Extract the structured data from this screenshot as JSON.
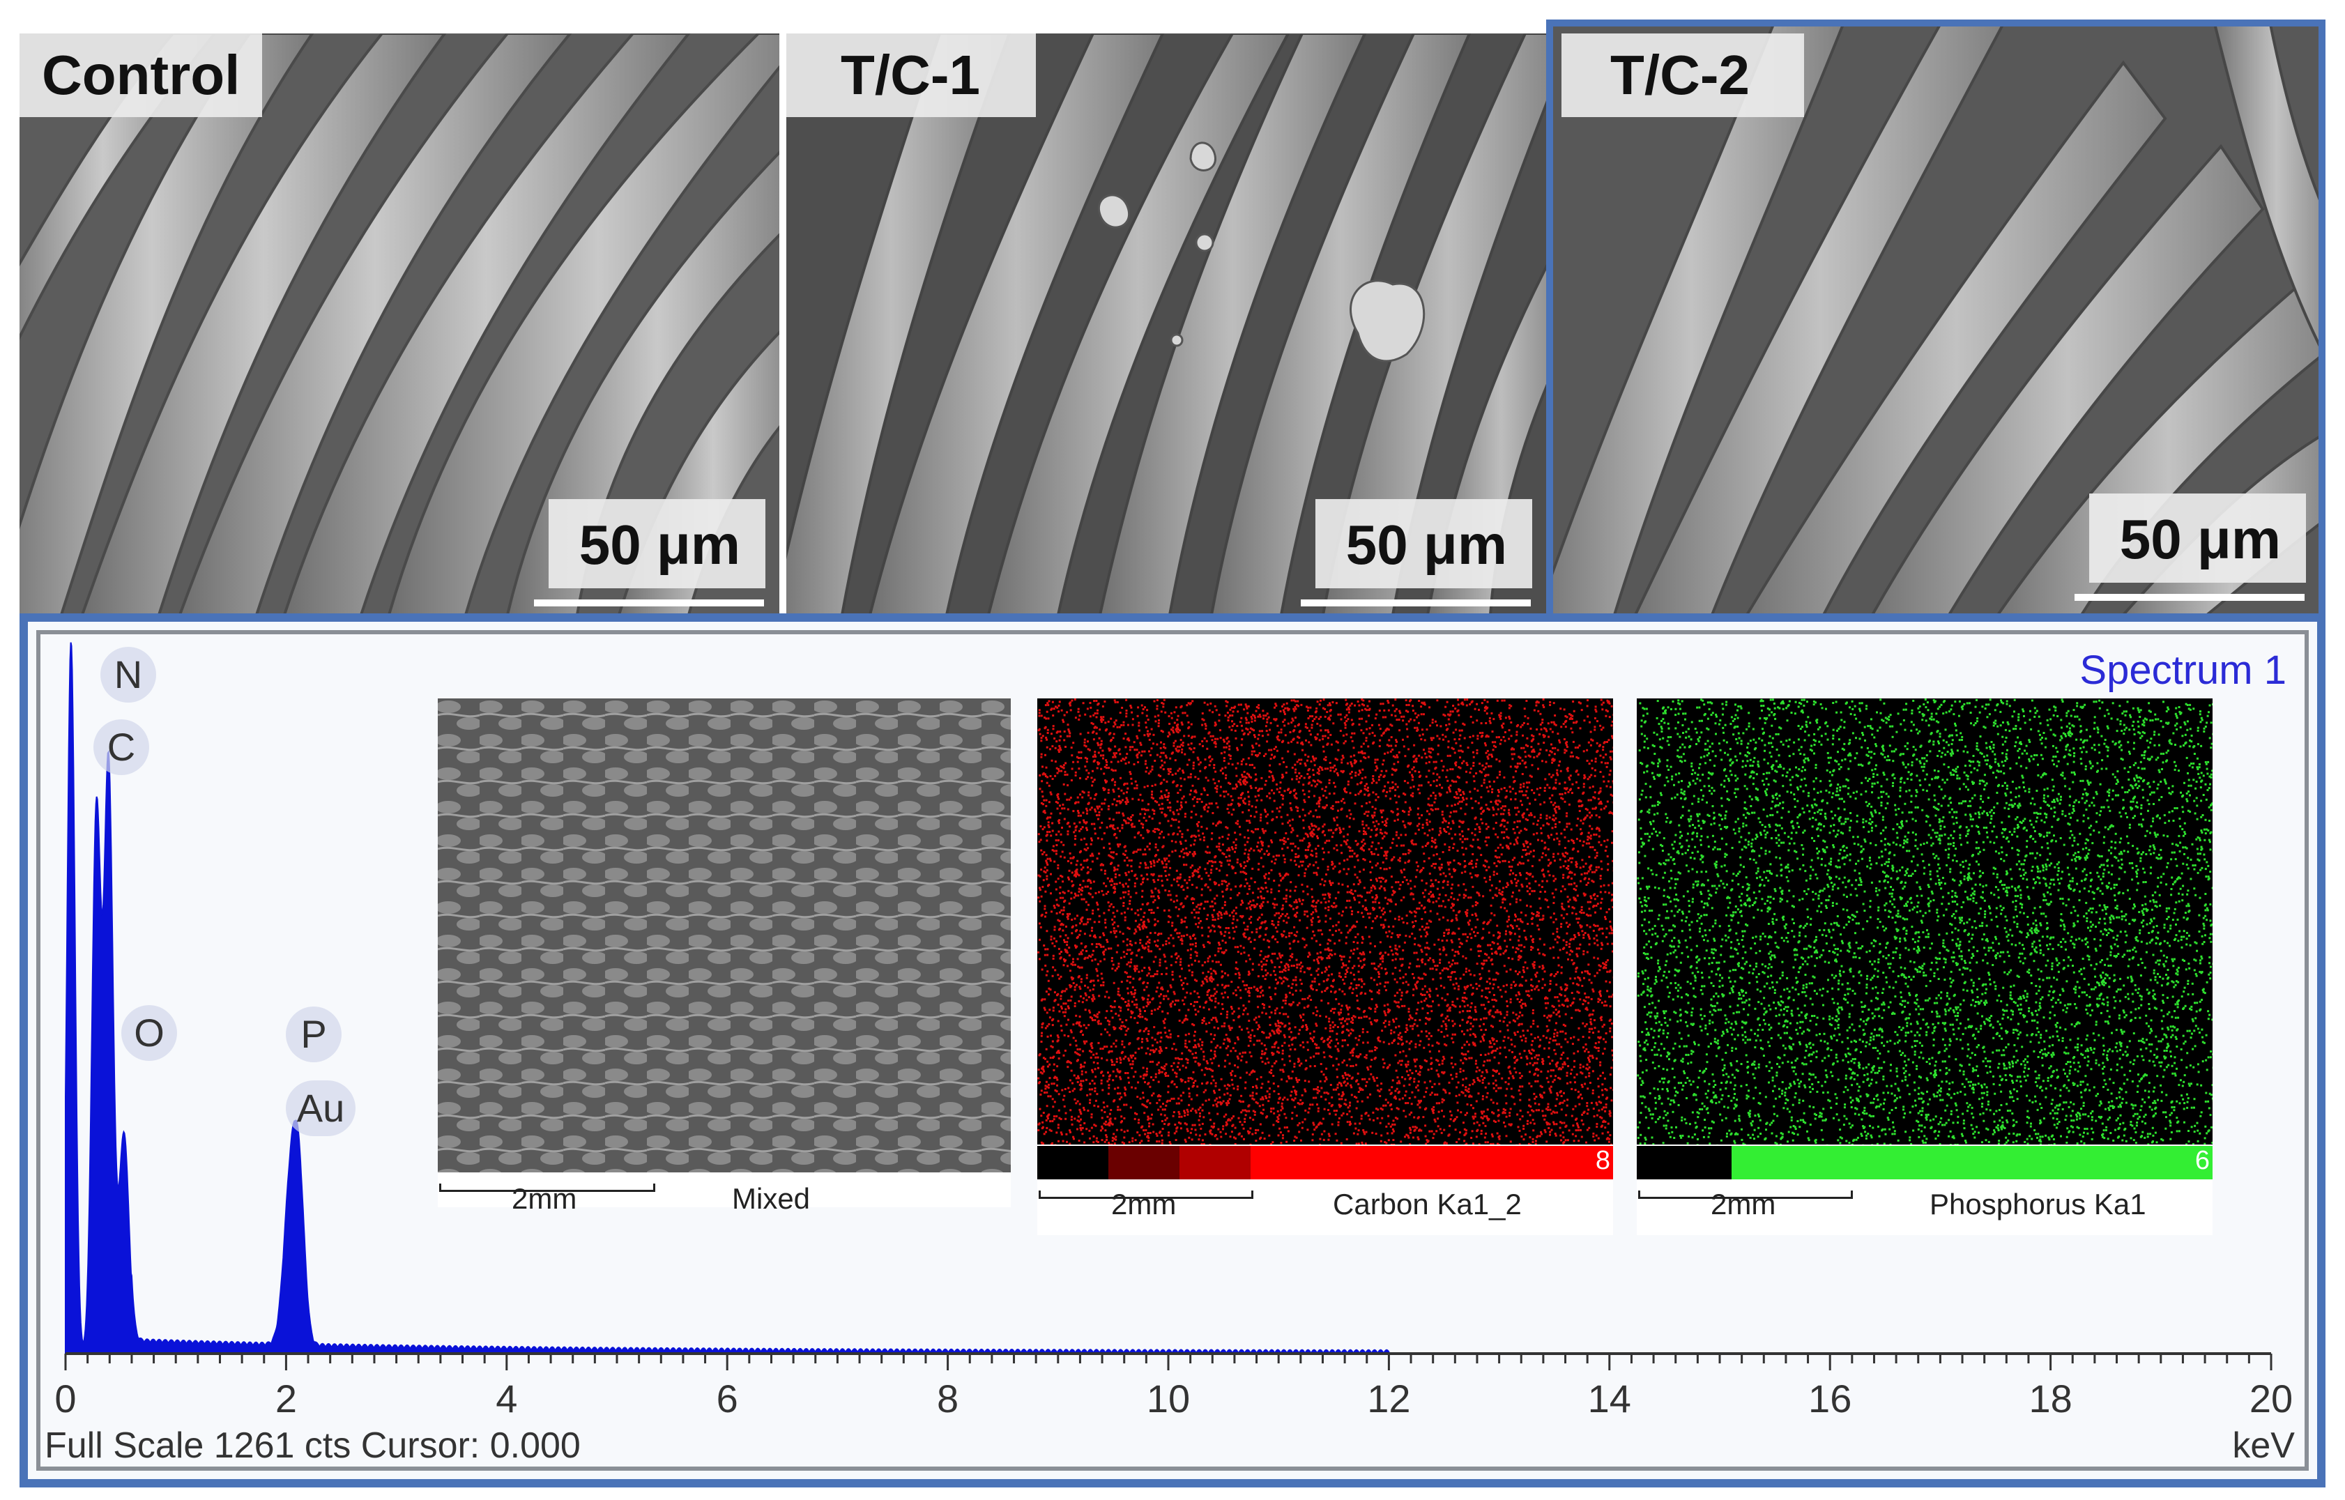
{
  "sem_panels": [
    {
      "label": "Control",
      "scale": "50 μm"
    },
    {
      "label": "T/C-1",
      "scale": "50 μm"
    },
    {
      "label": "T/C-2",
      "scale": "50 μm"
    }
  ],
  "eds": {
    "title": "Spectrum 1",
    "footer": "Full Scale 1261 cts Cursor: 0.000",
    "axis_unit": "keV",
    "peak_labels": [
      "N",
      "C",
      "O",
      "P",
      "Au"
    ],
    "maps": [
      {
        "scale": "2mm",
        "caption": "Mixed"
      },
      {
        "scale": "2mm",
        "caption": "Carbon Ka1_2",
        "max": "8"
      },
      {
        "scale": "2mm",
        "caption": "Phosphorus Ka1",
        "max": "6"
      }
    ]
  },
  "chart_data": {
    "type": "line",
    "title": "Spectrum 1",
    "xlabel": "keV",
    "ylabel": "",
    "xlim": [
      0,
      20
    ],
    "x_ticks": [
      "0",
      "2",
      "4",
      "6",
      "8",
      "10",
      "12",
      "14",
      "16",
      "18",
      "20"
    ],
    "series": [
      {
        "x": [
          0.05,
          0.28,
          0.39,
          0.53,
          2.04,
          2.12
        ],
        "peaks": [
          "",
          "C",
          "N",
          "O",
          "P",
          "Au"
        ],
        "values": [
          1261,
          960,
          1040,
          390,
          280,
          240
        ]
      }
    ],
    "colors": {
      "spectrum": "#0a12d8"
    }
  }
}
